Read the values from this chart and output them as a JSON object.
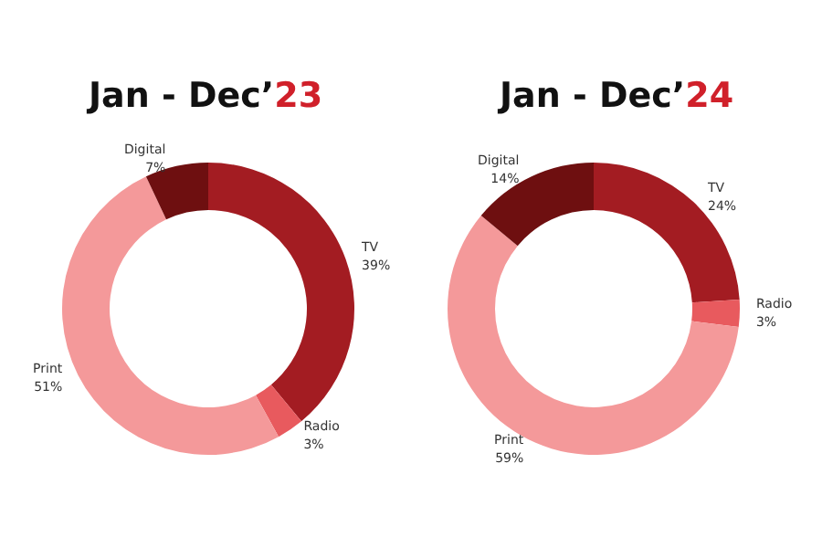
{
  "chart_data": [
    {
      "type": "donut",
      "title": "Jan - Dec’23",
      "categories": [
        "TV",
        "Radio",
        "Print",
        "Digital"
      ],
      "values": [
        39,
        3,
        51,
        7
      ],
      "value_labels": [
        "39%",
        "3%",
        "51%",
        "7%"
      ],
      "colors": [
        "#a31c22",
        "#e85a5e",
        "#f4999a",
        "#6e0f10"
      ],
      "legend": false
    },
    {
      "type": "donut",
      "title": "Jan - Dec’24",
      "categories": [
        "TV",
        "Radio",
        "Print",
        "Digital"
      ],
      "values": [
        24,
        3,
        59,
        14
      ],
      "value_labels": [
        "24%",
        "3%",
        "59%",
        "14%"
      ],
      "colors": [
        "#a31c22",
        "#e85a5e",
        "#f4999a",
        "#6e0f10"
      ],
      "legend": false
    }
  ]
}
